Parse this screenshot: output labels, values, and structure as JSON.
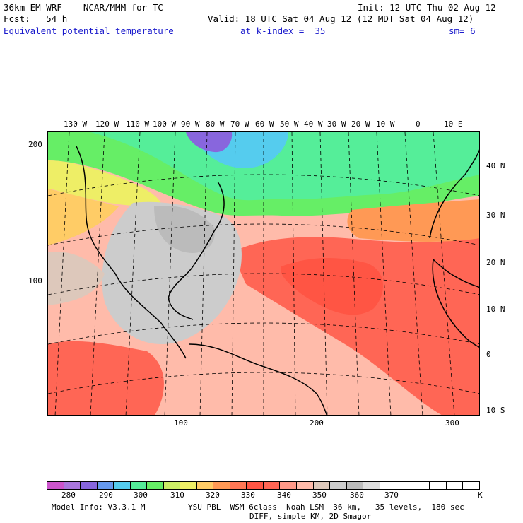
{
  "header": {
    "model": "36km EM-WRF -- NCAR/MMM for TC",
    "init": "Init: 12 UTC Thu 02 Aug 12",
    "fcst": "Fcst:   54 h",
    "valid": "Valid: 18 UTC Sat 04 Aug 12 (12 MDT Sat 04 Aug 12)",
    "field": "Equivalent potential temperature",
    "level": "at k-index =  35",
    "smooth": "sm= 6"
  },
  "map": {
    "top_lon_labels": [
      "130 W",
      "120 W",
      "110 W",
      "100 W",
      "90 W",
      "80 W",
      "70 W",
      "60 W",
      "50 W",
      "40 W",
      "30 W",
      "20 W",
      "10 W",
      "0",
      "10 E"
    ],
    "right_lat_labels": [
      "40 N",
      "30 N",
      "20 N",
      "10 N",
      "0",
      "10 S"
    ],
    "left_grid_labels": [
      "200",
      "100"
    ],
    "bottom_grid_labels": [
      "100",
      "200",
      "300"
    ]
  },
  "colorbar": {
    "colors": [
      "#cc55cc",
      "#aa77dd",
      "#8866dd",
      "#6699ee",
      "#55ccee",
      "#55ee99",
      "#66ee66",
      "#ccee66",
      "#eeee66",
      "#ffcc66",
      "#ff9955",
      "#ff7755",
      "#ff5544",
      "#ff6655",
      "#ff9988",
      "#ffbbaa",
      "#ddc8bb",
      "#cccccc",
      "#bbbbbb",
      "#dddddd",
      "#ffffff",
      "#ffffff",
      "#ffffff",
      "#ffffff",
      "#ffffff",
      "#ffffff"
    ],
    "labels": [
      "280",
      "290",
      "300",
      "310",
      "320",
      "330",
      "340",
      "350",
      "360",
      "370"
    ],
    "unit": "K"
  },
  "footer": {
    "line1_left": "Model Info: V3.3.1 M",
    "line1_right": "YSU PBL  WSM 6class  Noah LSM  36 km,   35 levels,  180 sec",
    "line2": "DIFF, simple KM, 2D Smagor"
  }
}
